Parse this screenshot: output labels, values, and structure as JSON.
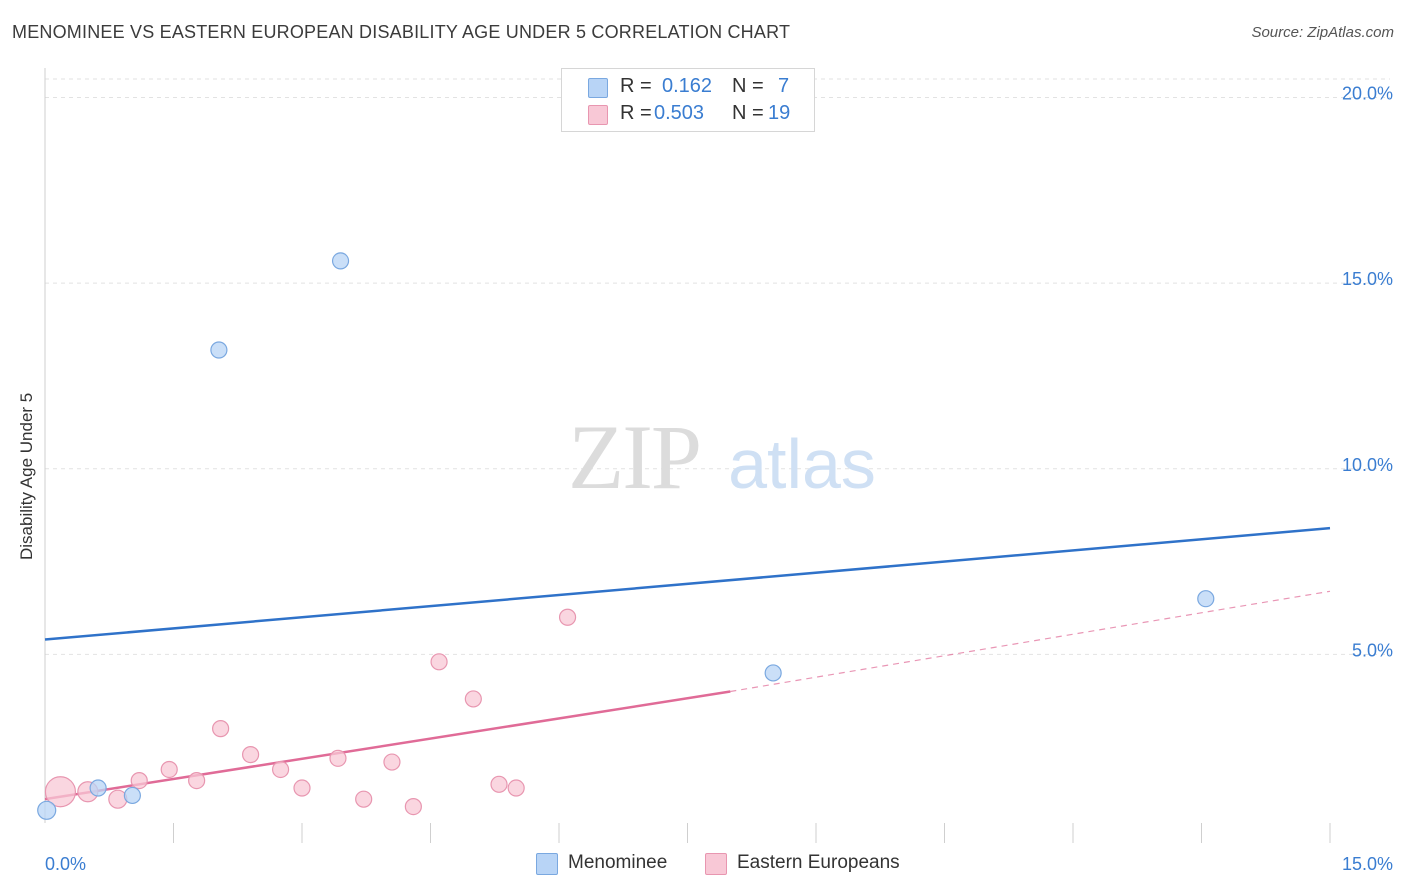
{
  "header": {
    "title": "MENOMINEE VS EASTERN EUROPEAN DISABILITY AGE UNDER 5 CORRELATION CHART",
    "source": "Source: ZipAtlas.com"
  },
  "watermark": {
    "zip": "ZIP",
    "atlas": "atlas"
  },
  "legend": {
    "rows": [
      {
        "r_label": "R =",
        "r_value": "0.162",
        "n_label": "N =",
        "n_value": "7",
        "fill": "#b8d4f6",
        "stroke": "#7aa8e0"
      },
      {
        "r_label": "R =",
        "r_value": "0.503",
        "n_label": "N =",
        "n_value": "19",
        "fill": "#f8c8d6",
        "stroke": "#e896b0"
      }
    ]
  },
  "bottom_legend": {
    "items": [
      {
        "label": "Menominee",
        "fill": "#b8d4f6",
        "stroke": "#7aa8e0"
      },
      {
        "label": "Eastern Europeans",
        "fill": "#f8c8d6",
        "stroke": "#e896b0"
      }
    ]
  },
  "chart_data": {
    "type": "scatter",
    "title": "MENOMINEE VS EASTERN EUROPEAN DISABILITY AGE UNDER 5 CORRELATION CHART",
    "xlabel": "",
    "ylabel": "Disability Age Under 5",
    "xlim": [
      0,
      15
    ],
    "ylim": [
      0,
      20.5
    ],
    "x_tick_labels": [
      {
        "value": 0,
        "label": "0.0%"
      },
      {
        "value": 15,
        "label": "15.0%"
      }
    ],
    "x_minor_ticks": [
      1.5,
      3.0,
      4.5,
      6.0,
      7.5,
      9.0,
      10.5,
      12.0,
      13.5,
      15.0
    ],
    "y_ticks": [
      {
        "value": 5,
        "label": "5.0%"
      },
      {
        "value": 10,
        "label": "10.0%"
      },
      {
        "value": 15,
        "label": "15.0%"
      },
      {
        "value": 20,
        "label": "20.0%"
      }
    ],
    "grid": true,
    "series": [
      {
        "name": "Menominee",
        "color": "#b8d4f6",
        "stroke": "#7aa8e0",
        "line_color": "#2f72c9",
        "points": [
          {
            "x": 0.02,
            "y": 0.8,
            "size": 9
          },
          {
            "x": 0.62,
            "y": 1.4,
            "size": 8
          },
          {
            "x": 1.02,
            "y": 1.2,
            "size": 8
          },
          {
            "x": 2.03,
            "y": 13.2,
            "size": 8
          },
          {
            "x": 3.45,
            "y": 15.6,
            "size": 8
          },
          {
            "x": 8.5,
            "y": 4.5,
            "size": 8
          },
          {
            "x": 13.55,
            "y": 6.5,
            "size": 8
          }
        ],
        "trend": {
          "x0": 0.0,
          "y0": 5.4,
          "x1": 15.0,
          "y1": 8.4
        }
      },
      {
        "name": "Eastern Europeans",
        "color": "#f8c8d6",
        "stroke": "#e896b0",
        "line_color": "#e06b97",
        "points": [
          {
            "x": 0.18,
            "y": 1.3,
            "size": 15
          },
          {
            "x": 0.5,
            "y": 1.3,
            "size": 10
          },
          {
            "x": 0.85,
            "y": 1.1,
            "size": 9
          },
          {
            "x": 1.1,
            "y": 1.6,
            "size": 8
          },
          {
            "x": 1.45,
            "y": 1.9,
            "size": 8
          },
          {
            "x": 1.77,
            "y": 1.6,
            "size": 8
          },
          {
            "x": 2.05,
            "y": 3.0,
            "size": 8
          },
          {
            "x": 2.4,
            "y": 2.3,
            "size": 8
          },
          {
            "x": 2.75,
            "y": 1.9,
            "size": 8
          },
          {
            "x": 3.0,
            "y": 1.4,
            "size": 8
          },
          {
            "x": 3.42,
            "y": 2.2,
            "size": 8
          },
          {
            "x": 3.72,
            "y": 1.1,
            "size": 8
          },
          {
            "x": 4.05,
            "y": 2.1,
            "size": 8
          },
          {
            "x": 4.3,
            "y": 0.9,
            "size": 8
          },
          {
            "x": 4.6,
            "y": 4.8,
            "size": 8
          },
          {
            "x": 5.0,
            "y": 3.8,
            "size": 8
          },
          {
            "x": 5.3,
            "y": 1.5,
            "size": 8
          },
          {
            "x": 5.5,
            "y": 1.4,
            "size": 8
          },
          {
            "x": 6.1,
            "y": 6.0,
            "size": 8
          }
        ],
        "trend": {
          "x0": 0.0,
          "y0": 1.1,
          "x1": 8.0,
          "y1": 4.0
        },
        "trend_dashed": {
          "x0": 8.0,
          "y0": 4.0,
          "x1": 15.0,
          "y1": 6.7
        }
      }
    ]
  }
}
